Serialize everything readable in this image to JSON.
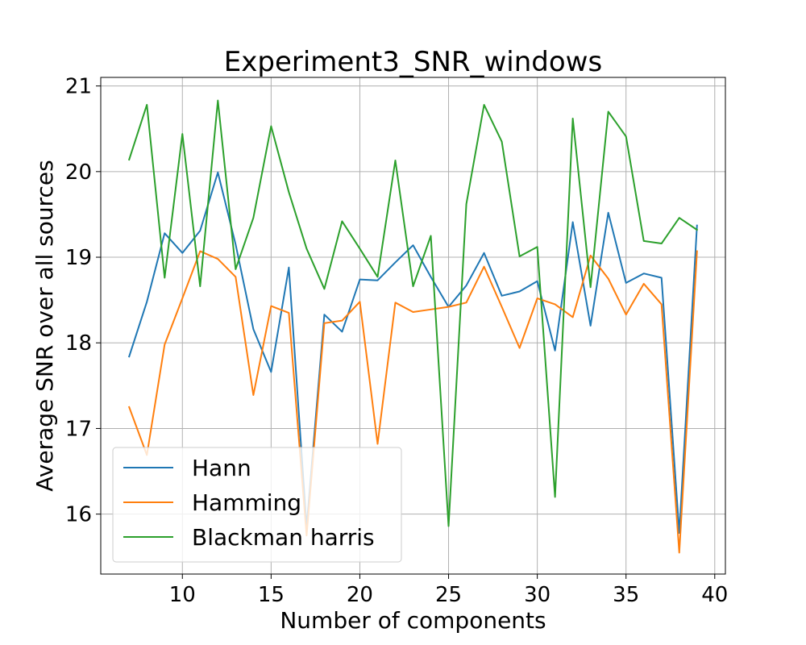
{
  "chart_data": {
    "type": "line",
    "title": "Experiment3_SNR_windows",
    "xlabel": "Number of components",
    "ylabel": "Average SNR over all sources",
    "xlim": [
      5.4,
      40.6
    ],
    "ylim": [
      15.3,
      21.1
    ],
    "xticks": [
      10,
      15,
      20,
      25,
      30,
      35,
      40
    ],
    "yticks": [
      16,
      17,
      18,
      19,
      20,
      21
    ],
    "grid": true,
    "legend_position": "lower-left",
    "x": [
      7,
      8,
      9,
      10,
      11,
      12,
      13,
      14,
      15,
      16,
      17,
      18,
      19,
      20,
      21,
      22,
      23,
      24,
      25,
      26,
      27,
      28,
      29,
      30,
      31,
      32,
      33,
      34,
      35,
      36,
      37,
      38,
      39
    ],
    "series": [
      {
        "name": "Hann",
        "color": "#1f77b4",
        "values": [
          17.84,
          18.48,
          19.28,
          19.05,
          19.31,
          19.99,
          19.15,
          18.16,
          17.66,
          18.88,
          15.85,
          18.33,
          18.13,
          18.74,
          18.73,
          18.94,
          19.14,
          18.77,
          18.42,
          18.67,
          19.05,
          18.55,
          18.6,
          18.72,
          17.91,
          19.41,
          18.2,
          19.52,
          18.7,
          18.81,
          18.76,
          15.78,
          19.37
        ]
      },
      {
        "name": "Hamming",
        "color": "#ff7f0e",
        "values": [
          17.25,
          16.69,
          17.98,
          18.52,
          19.07,
          18.98,
          18.77,
          17.39,
          18.43,
          18.35,
          15.75,
          18.23,
          18.26,
          18.48,
          16.82,
          18.47,
          18.36,
          18.39,
          18.42,
          18.47,
          18.89,
          18.42,
          17.94,
          18.52,
          18.45,
          18.3,
          19.02,
          18.75,
          18.33,
          18.69,
          18.45,
          15.55,
          19.07
        ]
      },
      {
        "name": "Blackman harris",
        "color": "#2ca02c",
        "values": [
          20.14,
          20.78,
          18.76,
          20.44,
          18.66,
          20.83,
          18.86,
          19.46,
          20.53,
          19.76,
          19.1,
          18.63,
          19.42,
          19.1,
          18.77,
          20.13,
          18.66,
          19.25,
          15.86,
          19.62,
          20.78,
          20.35,
          19.01,
          19.12,
          16.2,
          20.62,
          18.65,
          20.7,
          20.41,
          19.19,
          19.16,
          19.46,
          19.32
        ]
      }
    ]
  }
}
